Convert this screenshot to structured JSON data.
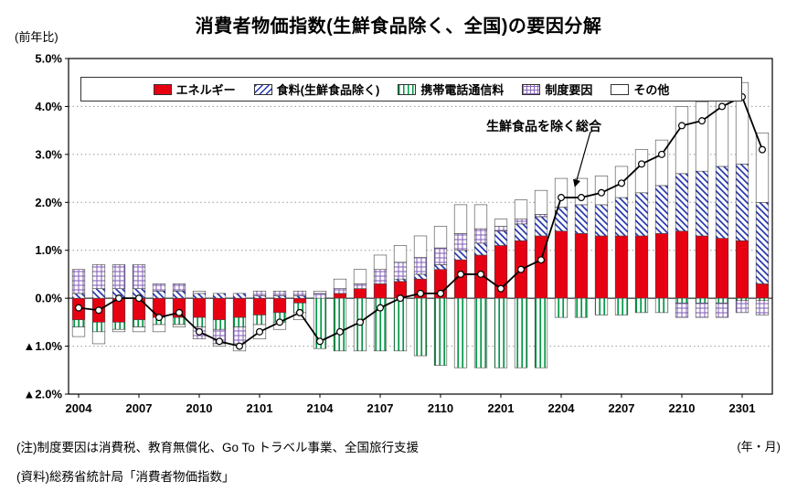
{
  "title": "消費者物価指数(生鮮食品除く、全国)の要因分解",
  "y_axis_unit": "(前年比)",
  "x_axis_unit": "(年・月)",
  "annotation_label": "生鮮食品を除く総合",
  "notes": [
    "(注)制度要因は消費税、教育無償化、Go To トラベル事業、全国旅行支援",
    "(資料)総務省統計局「消費者物価指数」"
  ],
  "chart_data": {
    "type": "bar",
    "subtype": "stacked-bar-with-line",
    "title": "消費者物価指数(生鮮食品除く、全国)の要因分解",
    "xlabel": "(年・月)",
    "ylabel": "(前年比)",
    "ylim": [
      -2.0,
      5.0
    ],
    "grid": "horizontal-dotted",
    "legend_position": "top-inside",
    "y_ticks": [
      {
        "v": 5,
        "label": "5.0%"
      },
      {
        "v": 4,
        "label": "4.0%"
      },
      {
        "v": 3,
        "label": "3.0%"
      },
      {
        "v": 2,
        "label": "2.0%"
      },
      {
        "v": 1,
        "label": "1.0%"
      },
      {
        "v": 0,
        "label": "0.0%"
      },
      {
        "v": -1,
        "label": "▲1.0%"
      },
      {
        "v": -2,
        "label": "▲2.0%"
      }
    ],
    "x_tick_step": 3,
    "categories": [
      "2004",
      "2005",
      "2006",
      "2007",
      "2008",
      "2009",
      "2010",
      "2011",
      "2012",
      "2101",
      "2102",
      "2103",
      "2104",
      "2105",
      "2106",
      "2107",
      "2108",
      "2109",
      "2110",
      "2111",
      "2112",
      "2201",
      "2202",
      "2203",
      "2204",
      "2205",
      "2206",
      "2207",
      "2208",
      "2209",
      "2210",
      "2211",
      "2212",
      "2301",
      "2302"
    ],
    "series": [
      {
        "name": "エネルギー",
        "color": "#e60012",
        "pattern": "solid",
        "values": [
          -0.45,
          -0.5,
          -0.5,
          -0.45,
          -0.4,
          -0.4,
          -0.4,
          -0.45,
          -0.4,
          -0.35,
          -0.3,
          -0.1,
          0.0,
          0.1,
          0.2,
          0.3,
          0.35,
          0.4,
          0.6,
          0.8,
          0.9,
          1.1,
          1.2,
          1.3,
          1.4,
          1.35,
          1.3,
          1.3,
          1.3,
          1.35,
          1.4,
          1.3,
          1.25,
          1.2,
          0.3
        ]
      },
      {
        "name": "食料(生鮮食品除く)",
        "color": "#2233aa",
        "pattern": "diagonal",
        "values": [
          0.1,
          0.2,
          0.2,
          0.2,
          0.15,
          0.15,
          0.1,
          0.1,
          0.1,
          0.05,
          0.05,
          0.05,
          0.0,
          0.0,
          0.0,
          0.0,
          0.05,
          0.1,
          0.1,
          0.2,
          0.25,
          0.3,
          0.35,
          0.4,
          0.5,
          0.6,
          0.65,
          0.8,
          0.9,
          1.0,
          1.2,
          1.35,
          1.5,
          1.6,
          1.7
        ]
      },
      {
        "name": "携帯電話通信料",
        "color": "#009944",
        "pattern": "vertical",
        "values": [
          -0.15,
          -0.2,
          -0.15,
          -0.15,
          -0.15,
          -0.15,
          -0.2,
          -0.2,
          -0.2,
          -0.2,
          -0.2,
          -0.2,
          -1.05,
          -1.1,
          -1.1,
          -1.1,
          -1.1,
          -1.2,
          -1.4,
          -1.45,
          -1.45,
          -1.45,
          -1.45,
          -1.45,
          -0.4,
          -0.4,
          -0.35,
          -0.35,
          -0.3,
          -0.3,
          -0.1,
          -0.1,
          -0.1,
          -0.05,
          -0.05
        ]
      },
      {
        "name": "制度要因",
        "color": "#8866bb",
        "pattern": "grid",
        "values": [
          0.5,
          0.5,
          0.5,
          0.5,
          0.15,
          0.15,
          -0.25,
          -0.3,
          -0.35,
          0.1,
          0.1,
          0.1,
          0.1,
          0.1,
          0.1,
          0.3,
          0.35,
          0.35,
          0.35,
          0.35,
          0.3,
          0.1,
          0.1,
          0.05,
          0.0,
          0.0,
          0.0,
          0.0,
          0.0,
          0.0,
          -0.3,
          -0.3,
          -0.3,
          -0.25,
          -0.3
        ]
      },
      {
        "name": "その他",
        "color": "#ffffff",
        "pattern": "none",
        "values": [
          -0.2,
          -0.25,
          -0.05,
          -0.1,
          -0.15,
          -0.05,
          0.05,
          -0.05,
          -0.15,
          -0.3,
          -0.15,
          -0.15,
          0.05,
          0.2,
          0.3,
          0.3,
          0.35,
          0.45,
          0.45,
          0.6,
          0.5,
          0.15,
          0.4,
          0.5,
          0.6,
          0.55,
          0.6,
          0.65,
          0.9,
          0.95,
          1.4,
          1.45,
          1.65,
          1.7,
          1.45
        ]
      }
    ],
    "line_series": {
      "name": "生鮮食品を除く総合",
      "values": [
        -0.2,
        -0.25,
        0.0,
        0.0,
        -0.4,
        -0.3,
        -0.7,
        -0.9,
        -1.0,
        -0.7,
        -0.5,
        -0.3,
        -0.9,
        -0.7,
        -0.5,
        -0.2,
        0.0,
        0.1,
        0.1,
        0.5,
        0.5,
        0.2,
        0.6,
        0.8,
        2.1,
        2.1,
        2.2,
        2.4,
        2.8,
        3.0,
        3.6,
        3.7,
        4.0,
        4.2,
        3.1
      ]
    }
  }
}
